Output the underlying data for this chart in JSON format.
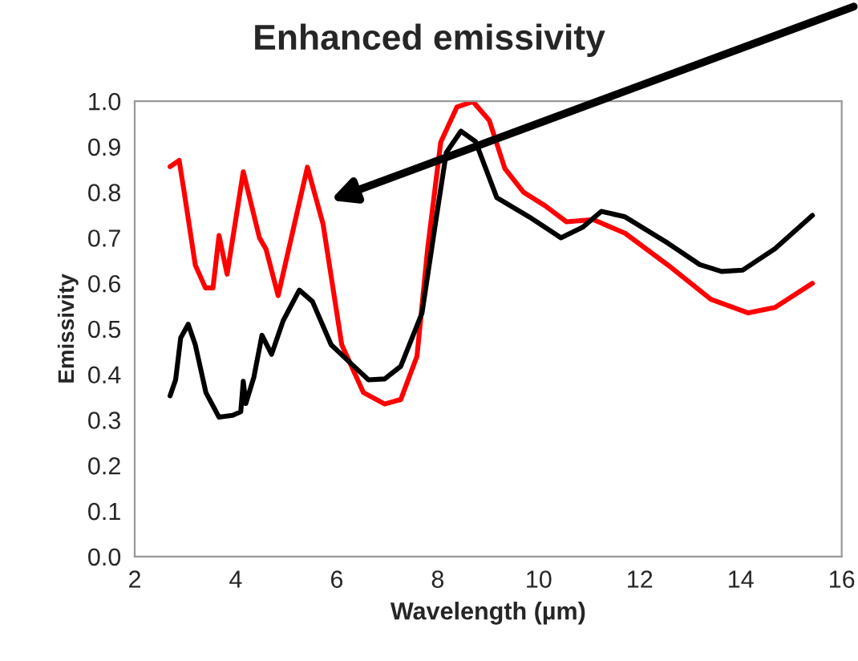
{
  "chart_data": {
    "type": "line",
    "title": "Enhanced emissivity",
    "xlabel": "Wavelength (µm)",
    "ylabel": "Emissivity",
    "xlim": [
      2,
      16
    ],
    "xticks": [
      2,
      4,
      6,
      8,
      10,
      12,
      14,
      16
    ],
    "ylim": [
      0,
      1
    ],
    "yticks": [
      {
        "value": 0,
        "label": "0.0"
      },
      {
        "value": 0.1,
        "label": "0.1"
      },
      {
        "value": 0.2,
        "label": "0.2"
      },
      {
        "value": 0.3,
        "label": "0.3"
      },
      {
        "value": 0.4,
        "label": "0.4"
      },
      {
        "value": 0.5,
        "label": "0.5"
      },
      {
        "value": 0.6,
        "label": "0.6"
      },
      {
        "value": 0.7,
        "label": "0.7"
      },
      {
        "value": 0.8,
        "label": "0.8"
      },
      {
        "value": 0.9,
        "label": "0.9"
      },
      {
        "value": 1,
        "label": "1.0"
      }
    ],
    "grid": false,
    "series": [
      {
        "color": "#ff0000",
        "x": [
          2.7,
          2.88,
          2.98,
          3.2,
          3.4,
          3.55,
          3.67,
          3.83,
          4.15,
          4.47,
          4.6,
          4.84,
          5.42,
          5.73,
          6.1,
          6.53,
          6.95,
          7.27,
          7.59,
          7.8,
          8.06,
          8.38,
          8.7,
          9.02,
          9.33,
          9.7,
          10.13,
          10.55,
          11.08,
          11.71,
          12.56,
          13.41,
          14.15,
          14.68,
          15.42
        ],
        "values": [
          0.856,
          0.87,
          0.8,
          0.64,
          0.59,
          0.59,
          0.705,
          0.62,
          0.845,
          0.7,
          0.675,
          0.573,
          0.855,
          0.73,
          0.465,
          0.36,
          0.335,
          0.345,
          0.44,
          0.675,
          0.91,
          0.987,
          0.999,
          0.958,
          0.852,
          0.8,
          0.77,
          0.735,
          0.74,
          0.71,
          0.64,
          0.565,
          0.535,
          0.547,
          0.6
        ]
      },
      {
        "color": "#000000",
        "x": [
          2.7,
          2.81,
          2.91,
          3.06,
          3.2,
          3.41,
          3.67,
          3.94,
          4.1,
          4.15,
          4.2,
          4.36,
          4.52,
          4.71,
          4.94,
          5.26,
          5.52,
          5.89,
          6.32,
          6.63,
          6.95,
          7.27,
          7.69,
          7.96,
          8.17,
          8.46,
          8.75,
          9.17,
          9.81,
          10.44,
          10.87,
          11.24,
          11.71,
          12.56,
          13.19,
          13.62,
          14.04,
          14.68,
          15.42
        ],
        "values": [
          0.353,
          0.388,
          0.48,
          0.51,
          0.465,
          0.36,
          0.306,
          0.31,
          0.318,
          0.385,
          0.336,
          0.394,
          0.486,
          0.444,
          0.518,
          0.585,
          0.56,
          0.465,
          0.42,
          0.388,
          0.39,
          0.418,
          0.535,
          0.735,
          0.887,
          0.934,
          0.911,
          0.788,
          0.746,
          0.7,
          0.723,
          0.758,
          0.746,
          0.688,
          0.641,
          0.626,
          0.629,
          0.676,
          0.749
        ]
      }
    ]
  }
}
